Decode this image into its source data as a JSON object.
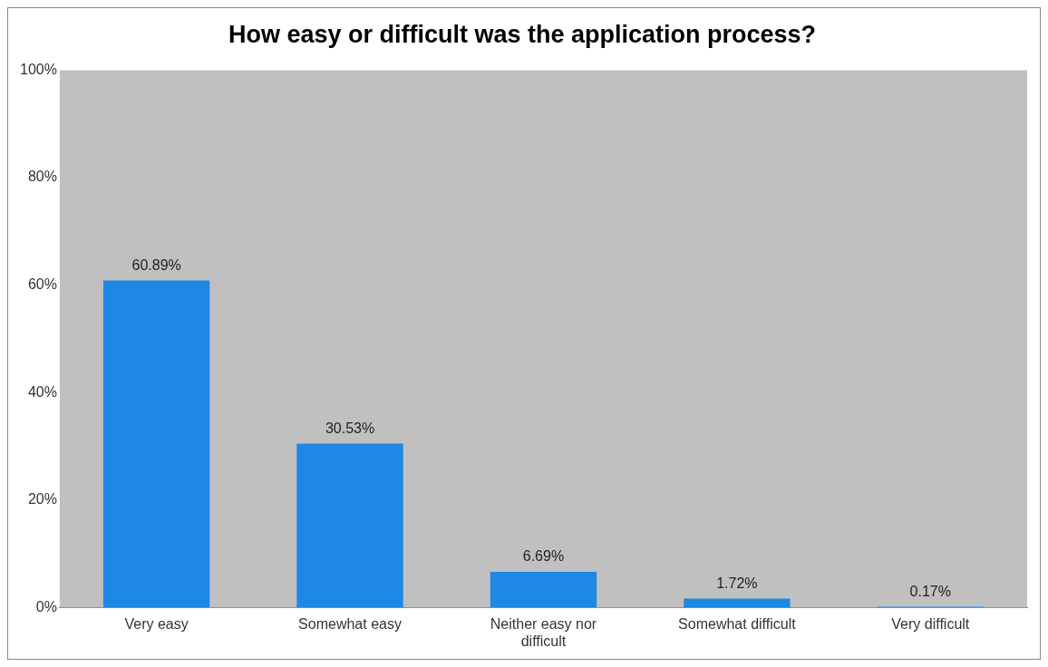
{
  "chart_data": {
    "type": "bar",
    "title": "How easy or difficult was the application process?",
    "categories": [
      "Very easy",
      "Somewhat easy",
      "Neither easy nor difficult",
      "Somewhat difficult",
      "Very difficult"
    ],
    "values": [
      60.89,
      30.53,
      6.69,
      1.72,
      0.17
    ],
    "value_labels": [
      "60.89%",
      "30.53%",
      "6.69%",
      "1.72%",
      "0.17%"
    ],
    "color": "#1e88e5",
    "ylim": [
      0,
      100
    ],
    "yticks": [
      {
        "value": 0,
        "label": "0%"
      },
      {
        "value": 20,
        "label": "20%"
      },
      {
        "value": 40,
        "label": "40%"
      },
      {
        "value": 60,
        "label": "60%"
      },
      {
        "value": 80,
        "label": "80%"
      },
      {
        "value": 100,
        "label": "100%"
      }
    ],
    "grid": false,
    "legend": false
  }
}
